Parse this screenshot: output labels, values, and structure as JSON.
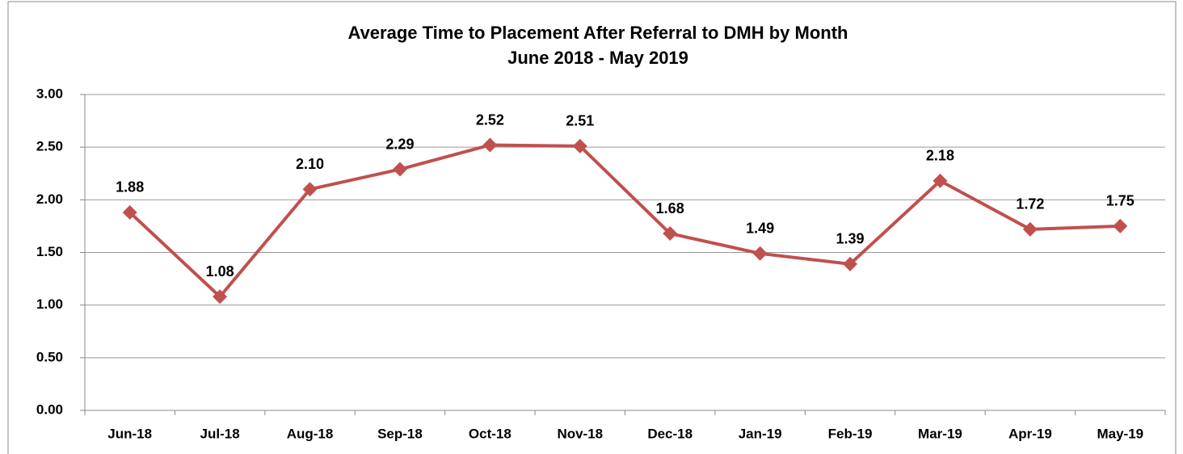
{
  "chart_data": {
    "type": "line",
    "title": "Average Time to Placement After Referral to DMH by Month",
    "subtitle": "June 2018 - May 2019",
    "categories": [
      "Jun-18",
      "Jul-18",
      "Aug-18",
      "Sep-18",
      "Oct-18",
      "Nov-18",
      "Dec-18",
      "Jan-19",
      "Feb-19",
      "Mar-19",
      "Apr-19",
      "May-19"
    ],
    "series": [
      {
        "color": "#c0504d",
        "values": [
          1.88,
          1.08,
          2.1,
          2.29,
          2.52,
          2.51,
          1.68,
          1.49,
          1.39,
          2.18,
          1.72,
          1.75
        ],
        "value_labels": [
          "1.88",
          "1.08",
          "2.10",
          "2.29",
          "2.52",
          "2.51",
          "1.68",
          "1.49",
          "1.39",
          "2.18",
          "1.72",
          "1.75"
        ]
      }
    ],
    "ylim": [
      0,
      3
    ],
    "yticks": [
      {
        "value": 0,
        "label": "0.00"
      },
      {
        "value": 0.5,
        "label": "0.50"
      },
      {
        "value": 1,
        "label": "1.00"
      },
      {
        "value": 1.5,
        "label": "1.50"
      },
      {
        "value": 2,
        "label": "2.00"
      },
      {
        "value": 2.5,
        "label": "2.50"
      },
      {
        "value": 3,
        "label": "3.00"
      }
    ],
    "grid": true
  }
}
